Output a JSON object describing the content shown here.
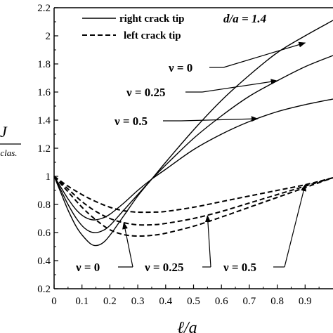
{
  "chart_data": {
    "type": "line",
    "title": "",
    "xlabel": "ℓ/a",
    "ylabel_main": "J",
    "ylabel_sub": "-clas.",
    "xlim": [
      0,
      1.0
    ],
    "ylim": [
      0.2,
      2.2
    ],
    "x_ticks": [
      0,
      0.1,
      0.2,
      0.3,
      0.4,
      0.5,
      0.6,
      0.7,
      0.8,
      0.9
    ],
    "x_tick_labels": [
      "0",
      "0.1",
      "0.2",
      "0.3",
      "0.4",
      "0.5",
      "0.6",
      "0.7",
      "0.8",
      "0.9"
    ],
    "y_ticks": [
      0.2,
      0.4,
      0.6,
      0.8,
      1.0,
      1.2,
      1.4,
      1.6,
      1.8,
      2.0,
      2.2
    ],
    "y_tick_labels": [
      "0.2",
      "0.4",
      "0.6",
      "0.8",
      "1",
      "1.2",
      "1.4",
      "1.6",
      "1.8",
      "2",
      "2.2"
    ],
    "grid": false,
    "legend_position": "top-left",
    "legend": [
      {
        "label": "right crack tip",
        "style": "solid"
      },
      {
        "label": "left crack tip",
        "style": "dashed"
      }
    ],
    "parameter_label": "d/a = 1.4",
    "series": [
      {
        "tip": "right",
        "nu": "0",
        "style": "solid",
        "x": [
          0.0,
          0.025,
          0.05,
          0.08,
          0.11,
          0.14,
          0.17,
          0.2,
          0.25,
          0.3,
          0.35,
          0.4,
          0.5,
          0.6,
          0.7,
          0.8,
          0.9,
          1.0
        ],
        "y": [
          1.0,
          0.88,
          0.76,
          0.64,
          0.56,
          0.51,
          0.52,
          0.58,
          0.72,
          0.86,
          0.98,
          1.1,
          1.33,
          1.54,
          1.72,
          1.88,
          2.0,
          2.11
        ]
      },
      {
        "tip": "right",
        "nu": "0.25",
        "style": "solid",
        "x": [
          0.0,
          0.025,
          0.05,
          0.08,
          0.11,
          0.14,
          0.17,
          0.2,
          0.25,
          0.3,
          0.35,
          0.4,
          0.5,
          0.6,
          0.7,
          0.8,
          0.9,
          1.0
        ],
        "y": [
          1.0,
          0.9,
          0.8,
          0.7,
          0.63,
          0.6,
          0.61,
          0.65,
          0.76,
          0.87,
          0.98,
          1.08,
          1.27,
          1.43,
          1.57,
          1.68,
          1.78,
          1.86
        ]
      },
      {
        "tip": "right",
        "nu": "0.5",
        "style": "solid",
        "x": [
          0.0,
          0.025,
          0.05,
          0.08,
          0.11,
          0.14,
          0.17,
          0.2,
          0.25,
          0.3,
          0.35,
          0.4,
          0.5,
          0.6,
          0.7,
          0.8,
          0.9,
          1.0
        ],
        "y": [
          1.0,
          0.92,
          0.84,
          0.76,
          0.71,
          0.69,
          0.7,
          0.73,
          0.81,
          0.9,
          0.98,
          1.05,
          1.19,
          1.3,
          1.39,
          1.46,
          1.51,
          1.55
        ]
      },
      {
        "tip": "left",
        "nu": "0",
        "style": "dashed",
        "x": [
          0.0,
          0.05,
          0.1,
          0.15,
          0.2,
          0.25,
          0.3,
          0.35,
          0.4,
          0.5,
          0.6,
          0.7,
          0.8,
          0.9,
          1.0
        ],
        "y": [
          1.0,
          0.93,
          0.87,
          0.82,
          0.78,
          0.755,
          0.745,
          0.745,
          0.75,
          0.78,
          0.82,
          0.86,
          0.9,
          0.94,
          0.99
        ]
      },
      {
        "tip": "left",
        "nu": "0.25",
        "style": "dashed",
        "x": [
          0.0,
          0.05,
          0.1,
          0.15,
          0.2,
          0.25,
          0.3,
          0.35,
          0.4,
          0.5,
          0.6,
          0.7,
          0.8,
          0.9,
          1.0
        ],
        "y": [
          1.0,
          0.91,
          0.82,
          0.75,
          0.7,
          0.67,
          0.655,
          0.655,
          0.665,
          0.7,
          0.75,
          0.81,
          0.87,
          0.93,
          0.99
        ]
      },
      {
        "tip": "left",
        "nu": "0.5",
        "style": "dashed",
        "x": [
          0.0,
          0.05,
          0.1,
          0.15,
          0.2,
          0.25,
          0.3,
          0.35,
          0.4,
          0.5,
          0.6,
          0.7,
          0.8,
          0.9,
          1.0
        ],
        "y": [
          1.0,
          0.89,
          0.78,
          0.69,
          0.62,
          0.585,
          0.575,
          0.58,
          0.595,
          0.645,
          0.71,
          0.78,
          0.85,
          0.92,
          0.99
        ]
      }
    ],
    "annotations": [
      {
        "text": "ν = 0",
        "target": "right ν=0",
        "arrow_to": [
          0.9,
          1.95
        ]
      },
      {
        "text": "ν = 0.25",
        "target": "right ν=0.25",
        "arrow_to": [
          0.8,
          1.68
        ]
      },
      {
        "text": "ν = 0.5",
        "target": "right ν=0.5",
        "arrow_to": [
          0.73,
          1.41
        ]
      },
      {
        "text": "ν = 0",
        "target": "left ν=0",
        "arrow_to": [
          0.25,
          0.67
        ]
      },
      {
        "text": "ν = 0.25",
        "target": "left ν=0.25",
        "arrow_to": [
          0.55,
          0.72
        ]
      },
      {
        "text": "ν = 0.5",
        "target": "left ν=0.5",
        "arrow_to": [
          0.9,
          0.94
        ]
      }
    ]
  }
}
